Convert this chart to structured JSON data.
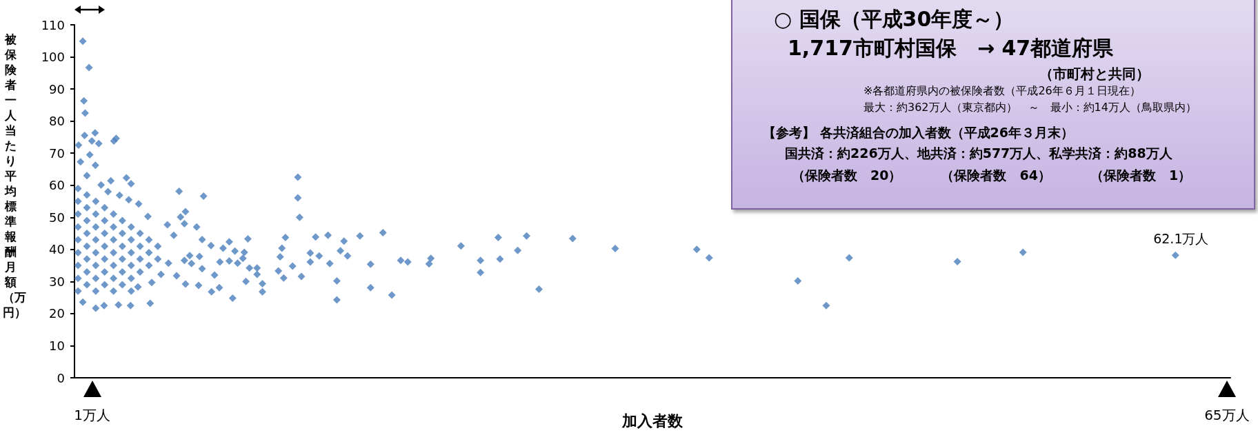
{
  "chart_data": {
    "type": "scatter",
    "xlabel": "加入者数",
    "ylabel": "被保険者一人当たり平均標準報酬月額（万円）",
    "xlim": [
      0,
      65.2
    ],
    "xticks": [
      {
        "value": 1,
        "label": "1万人"
      },
      {
        "value": 65,
        "label": "65万人"
      }
    ],
    "ylim": [
      0,
      110
    ],
    "yticks": [
      0,
      10,
      20,
      30,
      40,
      50,
      60,
      70,
      80,
      90,
      100,
      110
    ],
    "marker": "diamond",
    "annotations": [
      "○ 国保（平成30年度～）",
      "1,717市町村国保　→ 47都道府県",
      "（市町村と共同）",
      "※各都道府県内の被保険者数（平成26年６月１日現在）",
      "最大：約362万人（東京都内）　～　最小：約14万人（鳥取県内）",
      "【参考】 各共済組合の加入者数（平成26年３月末）",
      "国共済：約226万人、地共済：約577万人、私学共済：約88万人",
      "（保険者数　20）　　　（保険者数　64）　　　（保険者数　1）",
      {
        "text": "62.1万人",
        "x": 62.1,
        "y": 38.2
      }
    ],
    "series": [
      {
        "color": "#4a7ebb",
        "x": [
          0.47,
          0.82,
          0.53,
          0.6,
          0.57,
          1.16,
          0.23,
          0.98,
          1.37,
          2.22,
          2.35,
          0.86,
          0.34,
          1.18,
          2.93,
          3.19,
          2.05,
          1.5,
          1.89,
          2.54,
          3.06,
          3.62,
          4.14,
          12.6,
          12.6,
          5.9,
          7.28,
          6.26,
          5.98,
          6.2,
          6.89,
          5.24,
          5.6,
          7.2,
          7.7,
          8.73,
          9.78,
          11.9,
          11.7,
          12.3,
          11.8,
          11.5,
          10.6,
          10.6,
          10.3,
          10.3,
          9.87,
          9.67,
          9.58,
          9.5,
          9.05,
          9.2,
          8.73,
          8.38,
          8.2,
          8.17,
          8.92,
          7.73,
          7.0,
          6.26,
          7.9,
          7.05,
          7.2,
          6.5,
          6.6,
          6.2,
          5.76,
          5.3,
          4.88,
          4.27,
          3.16,
          2.48,
          1.67,
          1.2,
          0.47,
          3.58,
          4.36,
          12.7,
          11.6,
          12.8,
          13.6,
          14.3,
          13.3,
          13.3,
          13.8,
          14.4,
          14.8,
          14.8,
          15.2,
          15.0,
          15.4,
          16.1,
          16.7,
          16.7,
          17.4,
          17.9,
          18.4,
          18.8,
          20.1,
          20.0,
          21.8,
          22.9,
          22.9,
          23.9,
          24.0,
          25.0,
          25.5,
          26.2,
          28.1,
          30.5,
          35.1,
          35.8,
          40.8,
          42.4,
          43.7,
          49.8,
          53.5,
          62.1,
          0.2,
          0.2,
          0.2,
          0.2,
          0.2,
          0.2,
          0.2,
          0.2,
          0.2,
          0.7,
          0.7,
          0.7,
          0.7,
          0.7,
          0.7,
          0.7,
          0.7,
          0.7,
          1.2,
          1.2,
          1.2,
          1.2,
          1.2,
          1.2,
          1.2,
          1.2,
          1.7,
          1.7,
          1.7,
          1.7,
          1.7,
          1.7,
          1.7,
          2.2,
          2.2,
          2.2,
          2.2,
          2.2,
          2.2,
          2.2,
          2.7,
          2.7,
          2.7,
          2.7,
          2.7,
          2.7,
          3.2,
          3.2,
          3.2,
          3.2,
          3.2,
          3.2,
          3.7,
          3.7,
          3.7,
          3.7,
          4.2,
          4.2,
          4.2,
          4.7,
          4.7
        ],
        "values": [
          104.9,
          96.7,
          86.3,
          82.5,
          75.5,
          76.3,
          72.5,
          73.8,
          73.0,
          73.8,
          74.6,
          69.5,
          67.3,
          66.2,
          62.3,
          60.5,
          61.4,
          60.1,
          58.0,
          56.9,
          55.5,
          54.2,
          50.3,
          62.5,
          56.1,
          58.1,
          56.6,
          51.8,
          50.1,
          48.0,
          47.0,
          47.7,
          44.4,
          43.1,
          41.2,
          42.4,
          43.3,
          43.7,
          40.4,
          34.8,
          31.1,
          33.3,
          29.3,
          26.8,
          32.2,
          34.2,
          34.2,
          30.0,
          39.1,
          37.2,
          39.5,
          35.7,
          36.4,
          40.4,
          36.1,
          28.1,
          24.8,
          26.8,
          28.8,
          29.2,
          32.0,
          37.8,
          34.0,
          38.1,
          35.6,
          36.6,
          31.8,
          35.7,
          32.2,
          23.2,
          22.5,
          22.7,
          22.5,
          21.7,
          23.6,
          28.3,
          29.7,
          50.0,
          37.7,
          31.6,
          43.9,
          44.4,
          38.9,
          36.1,
          38.0,
          35.6,
          30.2,
          24.3,
          42.6,
          39.6,
          38.0,
          44.2,
          35.4,
          28.1,
          45.2,
          25.8,
          36.6,
          36.1,
          37.2,
          35.5,
          41.1,
          36.6,
          32.8,
          43.7,
          37.0,
          39.7,
          44.2,
          27.6,
          43.4,
          40.3,
          40.0,
          37.4,
          30.2,
          22.5,
          37.4,
          36.2,
          39.1,
          38.2,
          27,
          31,
          35,
          39,
          43,
          47,
          51,
          55,
          59,
          29,
          33,
          37,
          41,
          45,
          49,
          53,
          57,
          63,
          27,
          31,
          35,
          39,
          43,
          47,
          51,
          55,
          29,
          33,
          37,
          41,
          45,
          49,
          53,
          27,
          31,
          35,
          39,
          43,
          47,
          51,
          29,
          33,
          37,
          41,
          45,
          49,
          27,
          31,
          35,
          39,
          43,
          47,
          33,
          37,
          41,
          45,
          35,
          39,
          43,
          37,
          41
        ],
        "name": null
      }
    ]
  }
}
